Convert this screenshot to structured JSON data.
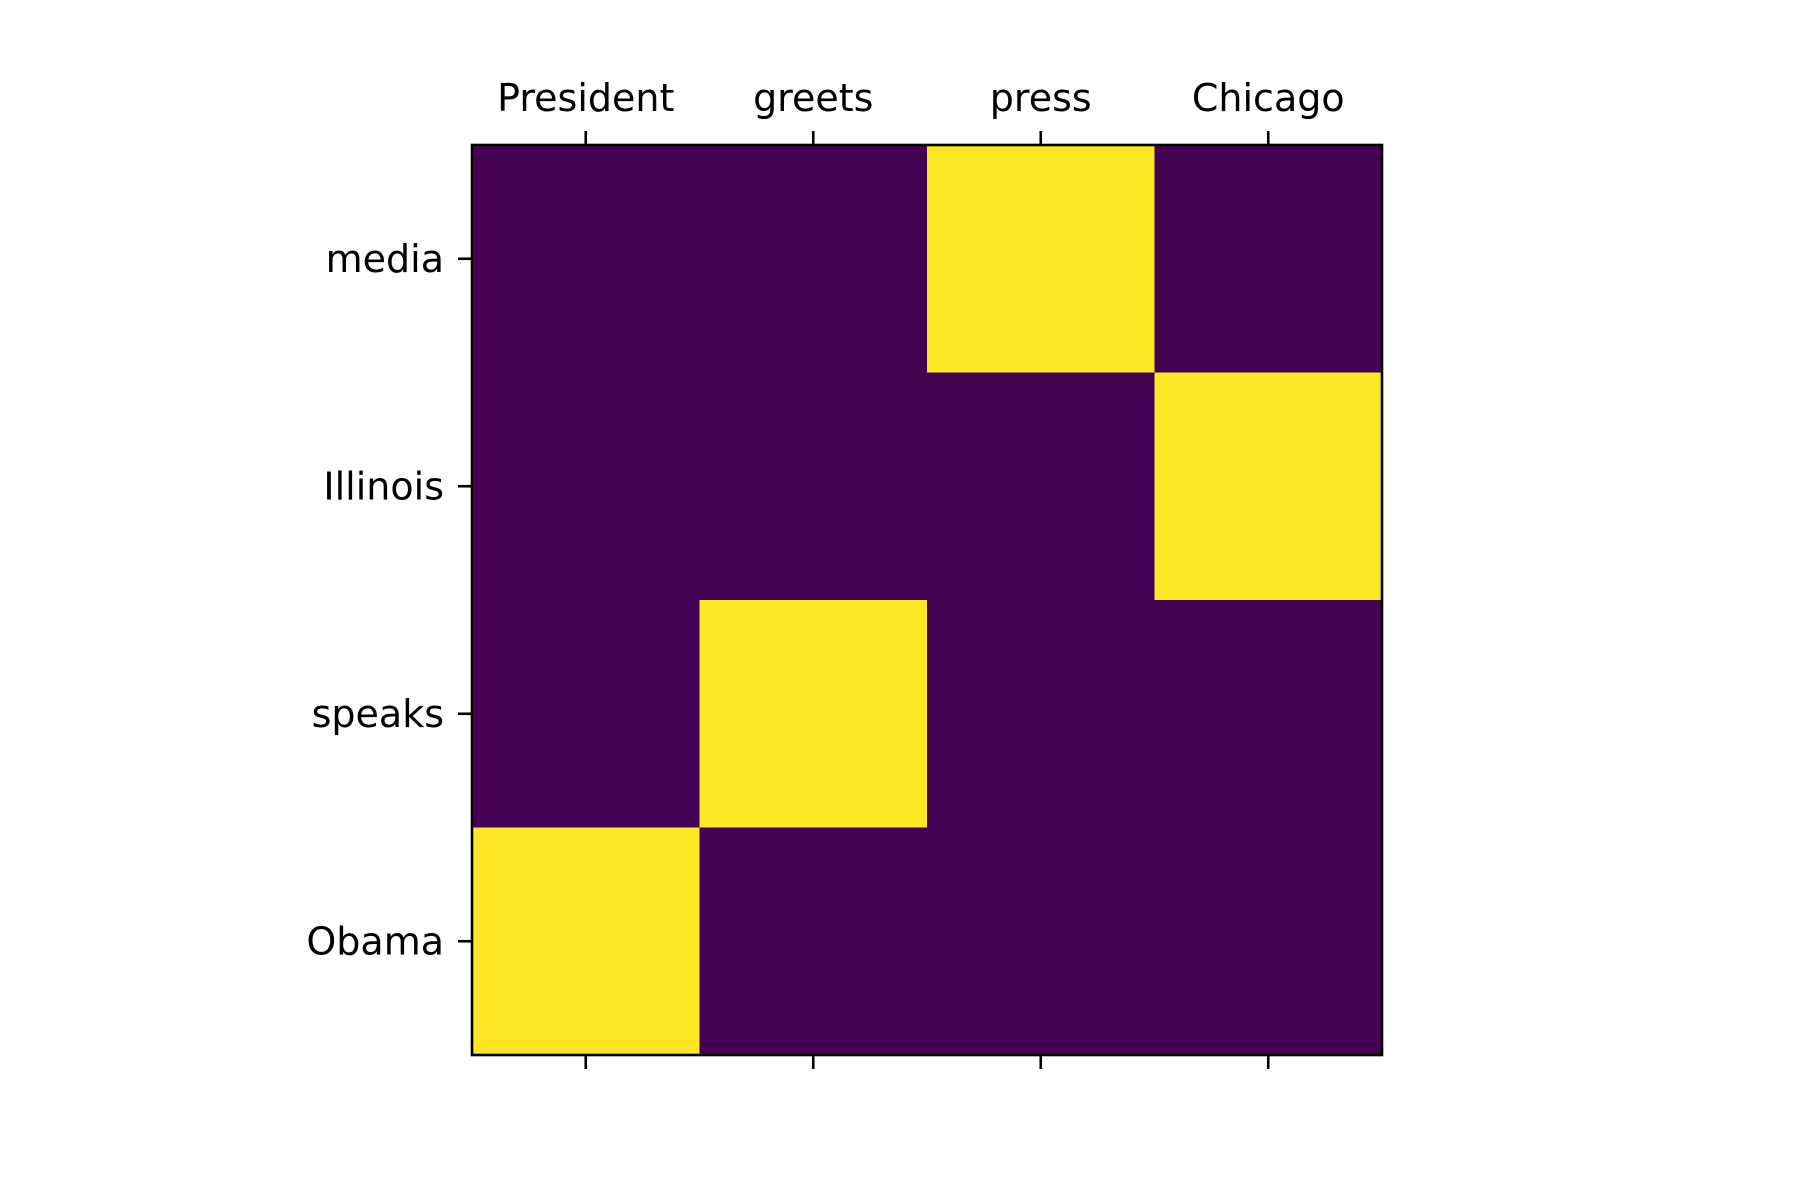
{
  "chart_data": {
    "type": "heatmap",
    "title": "",
    "xlabel": "",
    "ylabel": "",
    "x_categories": [
      "President",
      "greets",
      "press",
      "Chicago"
    ],
    "y_categories": [
      "media",
      "Illinois",
      "speaks",
      "Obama"
    ],
    "values": [
      [
        0,
        0,
        1,
        0
      ],
      [
        0,
        0,
        0,
        1
      ],
      [
        0,
        1,
        0,
        0
      ],
      [
        1,
        0,
        0,
        0
      ]
    ],
    "value_range": [
      0,
      1
    ],
    "x_tick_position": "top",
    "grid": false,
    "legend": "none",
    "colors": {
      "low": "#440154",
      "high": "#fde725"
    }
  }
}
